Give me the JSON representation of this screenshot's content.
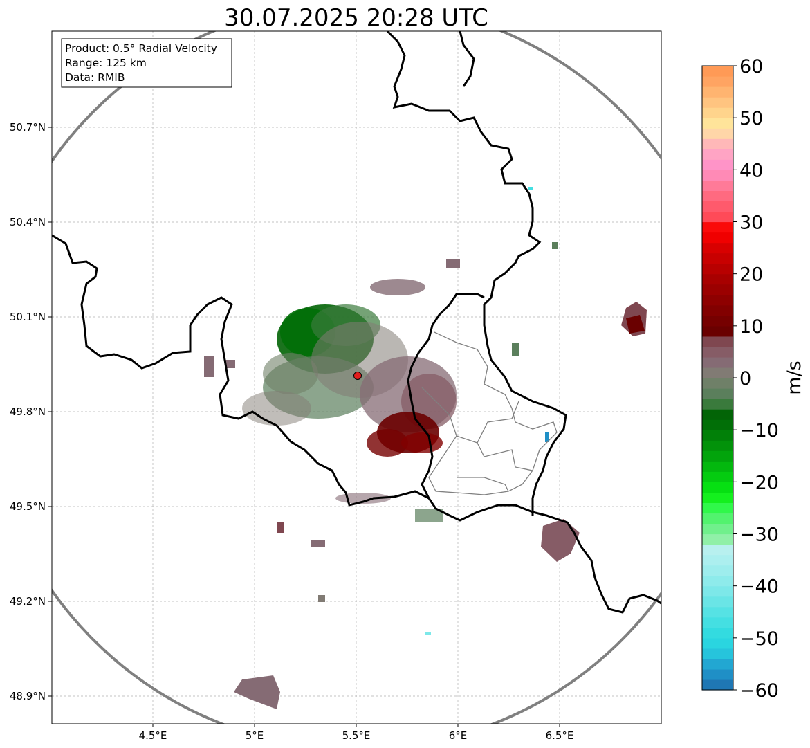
{
  "title": "30.07.2025 20:28 UTC",
  "info_box": {
    "product": "Product: 0.5° Radial Velocity",
    "range": "Range: 125 km",
    "data": "Data: RMIB"
  },
  "map": {
    "lon_range": [
      4.0,
      7.0
    ],
    "lat_range": [
      48.8,
      51.0
    ],
    "lon_ticks": [
      {
        "value": 4.5,
        "label": "4.5°E"
      },
      {
        "value": 5.0,
        "label": "5°E"
      },
      {
        "value": 5.5,
        "label": "5.5°E"
      },
      {
        "value": 6.0,
        "label": "6°E"
      },
      {
        "value": 6.5,
        "label": "6.5°E"
      }
    ],
    "lat_ticks": [
      {
        "value": 50.7,
        "label": "50.7°N"
      },
      {
        "value": 50.4,
        "label": "50.4°N"
      },
      {
        "value": 50.1,
        "label": "50.1°N"
      },
      {
        "value": 49.8,
        "label": "49.8°N"
      },
      {
        "value": 49.5,
        "label": "49.5°N"
      },
      {
        "value": 49.2,
        "label": "49.2°N"
      },
      {
        "value": 48.9,
        "label": "48.9°N"
      }
    ],
    "radar_site": {
      "lon": 5.505,
      "lat": 49.914
    },
    "range_km": 125,
    "colors": {
      "range_ring": "#808080",
      "border": "#000000",
      "admin_border": "#808080",
      "gridline": "#b0b0b0",
      "radar_marker": "#e21d1d"
    }
  },
  "colorbar": {
    "min": -60,
    "max": 60,
    "unit_label": "m/s",
    "ticks": [
      {
        "value": 60,
        "label": "60"
      },
      {
        "value": 50,
        "label": "50"
      },
      {
        "value": 40,
        "label": "40"
      },
      {
        "value": 30,
        "label": "30"
      },
      {
        "value": 20,
        "label": "20"
      },
      {
        "value": 10,
        "label": "10"
      },
      {
        "value": 0,
        "label": "0"
      },
      {
        "value": -10,
        "label": "−10"
      },
      {
        "value": -20,
        "label": "−20"
      },
      {
        "value": -30,
        "label": "−30"
      },
      {
        "value": -40,
        "label": "−40"
      },
      {
        "value": -50,
        "label": "−50"
      },
      {
        "value": -60,
        "label": "−60"
      }
    ],
    "bands": [
      {
        "from": -60,
        "to": -58,
        "color": "#1f77b4"
      },
      {
        "from": -58,
        "to": -56,
        "color": "#1f8fc6"
      },
      {
        "from": -56,
        "to": -54,
        "color": "#22a7d2"
      },
      {
        "from": -54,
        "to": -52,
        "color": "#26c4dc"
      },
      {
        "from": -52,
        "to": -50,
        "color": "#2ad5e0"
      },
      {
        "from": -50,
        "to": -48,
        "color": "#33dbe0"
      },
      {
        "from": -48,
        "to": -46,
        "color": "#44dfe2"
      },
      {
        "from": -46,
        "to": -44,
        "color": "#56e2e4"
      },
      {
        "from": -44,
        "to": -42,
        "color": "#6ae5e6"
      },
      {
        "from": -42,
        "to": -40,
        "color": "#7de8e9"
      },
      {
        "from": -40,
        "to": -38,
        "color": "#8eebeb"
      },
      {
        "from": -38,
        "to": -36,
        "color": "#9eeded"
      },
      {
        "from": -36,
        "to": -34,
        "color": "#acefef"
      },
      {
        "from": -34,
        "to": -32,
        "color": "#b8f0ef"
      },
      {
        "from": -32,
        "to": -30,
        "color": "#90f0a8"
      },
      {
        "from": -30,
        "to": -28,
        "color": "#70f08c"
      },
      {
        "from": -28,
        "to": -26,
        "color": "#52f36e"
      },
      {
        "from": -26,
        "to": -24,
        "color": "#30f84a"
      },
      {
        "from": -24,
        "to": -22,
        "color": "#14f01e"
      },
      {
        "from": -22,
        "to": -20,
        "color": "#06e012"
      },
      {
        "from": -20,
        "to": -18,
        "color": "#04cc10"
      },
      {
        "from": -18,
        "to": -16,
        "color": "#03b80e"
      },
      {
        "from": -16,
        "to": -14,
        "color": "#02a40c"
      },
      {
        "from": -14,
        "to": -12,
        "color": "#02920a"
      },
      {
        "from": -12,
        "to": -10,
        "color": "#018008"
      },
      {
        "from": -10,
        "to": -8,
        "color": "#016f07"
      },
      {
        "from": -8,
        "to": -6,
        "color": "#026406"
      },
      {
        "from": -6,
        "to": -4,
        "color": "#3a7a3c"
      },
      {
        "from": -4,
        "to": -2,
        "color": "#5b7f5c"
      },
      {
        "from": -2,
        "to": 0,
        "color": "#6f8068"
      },
      {
        "from": 0,
        "to": 2,
        "color": "#817b74"
      },
      {
        "from": 2,
        "to": 4,
        "color": "#856b74"
      },
      {
        "from": 4,
        "to": 6,
        "color": "#865c66"
      },
      {
        "from": 6,
        "to": 8,
        "color": "#7f4750"
      },
      {
        "from": 8,
        "to": 10,
        "color": "#6a0000"
      },
      {
        "from": 10,
        "to": 12,
        "color": "#760000"
      },
      {
        "from": 12,
        "to": 14,
        "color": "#820000"
      },
      {
        "from": 14,
        "to": 16,
        "color": "#8e0000"
      },
      {
        "from": 16,
        "to": 18,
        "color": "#9b0000"
      },
      {
        "from": 18,
        "to": 20,
        "color": "#a80000"
      },
      {
        "from": 20,
        "to": 22,
        "color": "#b80000"
      },
      {
        "from": 22,
        "to": 24,
        "color": "#c80000"
      },
      {
        "from": 24,
        "to": 26,
        "color": "#d80000"
      },
      {
        "from": 26,
        "to": 28,
        "color": "#f00000"
      },
      {
        "from": 28,
        "to": 30,
        "color": "#fa0a0a"
      },
      {
        "from": 30,
        "to": 32,
        "color": "#ff4a58"
      },
      {
        "from": 32,
        "to": 34,
        "color": "#ff5a6c"
      },
      {
        "from": 34,
        "to": 36,
        "color": "#ff6a80"
      },
      {
        "from": 36,
        "to": 38,
        "color": "#ff7a98"
      },
      {
        "from": 38,
        "to": 40,
        "color": "#ff8ab6"
      },
      {
        "from": 40,
        "to": 42,
        "color": "#ff94c8"
      },
      {
        "from": 42,
        "to": 44,
        "color": "#ffa4c4"
      },
      {
        "from": 44,
        "to": 46,
        "color": "#ffb8b8"
      },
      {
        "from": 46,
        "to": 48,
        "color": "#ffd6a8"
      },
      {
        "from": 48,
        "to": 50,
        "color": "#ffe49a"
      },
      {
        "from": 50,
        "to": 52,
        "color": "#ffd48c"
      },
      {
        "from": 52,
        "to": 54,
        "color": "#ffc480"
      },
      {
        "from": 54,
        "to": 56,
        "color": "#ffb470"
      },
      {
        "from": 56,
        "to": 58,
        "color": "#ffa462"
      },
      {
        "from": 58,
        "to": 60,
        "color": "#ff9a56"
      }
    ]
  }
}
